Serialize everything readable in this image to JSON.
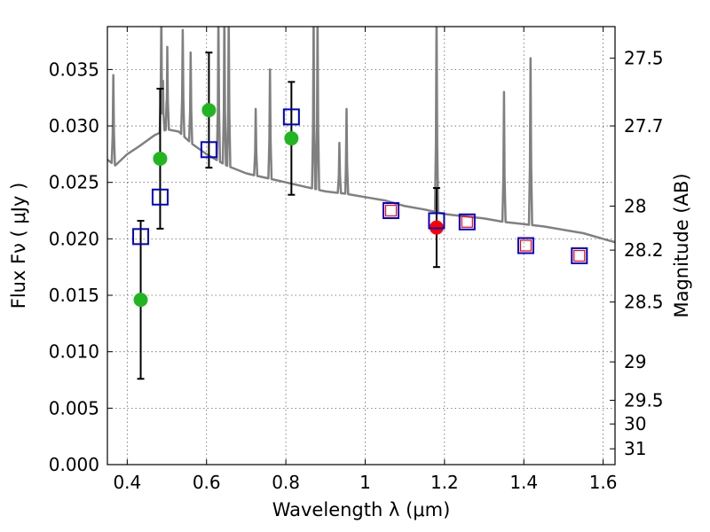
{
  "chart_data": {
    "type": "scatter",
    "title": "",
    "xlabel": "Wavelength  λ (μm)",
    "ylabel": "Flux  Fν  ( μJy )",
    "y2label": "Magnitude (AB)",
    "xlim": [
      0.35,
      1.63
    ],
    "ylim": [
      0.0,
      0.0388
    ],
    "xticks": [
      0.4,
      0.6,
      0.8,
      1.0,
      1.2,
      1.4,
      1.6
    ],
    "xtick_labels": [
      "0.4",
      "0.6",
      "0.8",
      "1",
      "1.2",
      "1.4",
      "1.6"
    ],
    "yticks": [
      0.0,
      0.005,
      0.01,
      0.015,
      0.02,
      0.025,
      0.03,
      0.035
    ],
    "ytick_labels": [
      "0.000",
      "0.005",
      "0.010",
      "0.015",
      "0.020",
      "0.025",
      "0.030",
      "0.035"
    ],
    "y2ticks": [
      {
        "flux": 0.036,
        "label": "27.5"
      },
      {
        "flux": 0.03,
        "label": "27.7"
      },
      {
        "flux": 0.0229,
        "label": "28"
      },
      {
        "flux": 0.019,
        "label": "28.2"
      },
      {
        "flux": 0.0144,
        "label": "28.5"
      },
      {
        "flux": 0.0091,
        "label": "29"
      },
      {
        "flux": 0.0057,
        "label": "29.5"
      },
      {
        "flux": 0.0036,
        "label": "30"
      },
      {
        "flux": 0.0014,
        "label": "31"
      }
    ],
    "grid": true,
    "series": [
      {
        "name": "model spectrum",
        "style": "line",
        "color": "#808080",
        "continuum": [
          [
            0.35,
            0.027
          ],
          [
            0.37,
            0.0265
          ],
          [
            0.4,
            0.0275
          ],
          [
            0.43,
            0.0282
          ],
          [
            0.47,
            0.0292
          ],
          [
            0.5,
            0.0297
          ],
          [
            0.53,
            0.0295
          ],
          [
            0.56,
            0.0285
          ],
          [
            0.6,
            0.0275
          ],
          [
            0.65,
            0.0265
          ],
          [
            0.7,
            0.0258
          ],
          [
            0.75,
            0.0254
          ],
          [
            0.8,
            0.025
          ],
          [
            0.85,
            0.0246
          ],
          [
            0.9,
            0.0242
          ],
          [
            0.95,
            0.024
          ],
          [
            1.0,
            0.0237
          ],
          [
            1.05,
            0.0234
          ],
          [
            1.1,
            0.0229
          ],
          [
            1.15,
            0.0226
          ],
          [
            1.2,
            0.0222
          ],
          [
            1.25,
            0.022
          ],
          [
            1.3,
            0.0218
          ],
          [
            1.35,
            0.0215
          ],
          [
            1.4,
            0.0213
          ],
          [
            1.45,
            0.0211
          ],
          [
            1.5,
            0.0208
          ],
          [
            1.55,
            0.0205
          ],
          [
            1.6,
            0.02
          ],
          [
            1.63,
            0.0197
          ]
        ],
        "emission_lines": [
          {
            "x": 0.365,
            "peak": 0.0345
          },
          {
            "x": 0.486,
            "peak": 0.04
          },
          {
            "x": 0.49,
            "peak": 0.034
          },
          {
            "x": 0.501,
            "peak": 0.037
          },
          {
            "x": 0.54,
            "peak": 0.0385
          },
          {
            "x": 0.56,
            "peak": 0.0365
          },
          {
            "x": 0.63,
            "peak": 0.04
          },
          {
            "x": 0.645,
            "peak": 0.04
          },
          {
            "x": 0.656,
            "peak": 0.04
          },
          {
            "x": 0.724,
            "peak": 0.0315
          },
          {
            "x": 0.76,
            "peak": 0.035
          },
          {
            "x": 0.87,
            "peak": 0.04
          },
          {
            "x": 0.88,
            "peak": 0.04
          },
          {
            "x": 0.935,
            "peak": 0.0285
          },
          {
            "x": 0.953,
            "peak": 0.0315
          },
          {
            "x": 1.18,
            "peak": 0.04
          },
          {
            "x": 1.35,
            "peak": 0.033
          },
          {
            "x": 1.417,
            "peak": 0.036
          }
        ]
      },
      {
        "name": "observed (green)",
        "style": "marker-circle",
        "color": "#22b522",
        "points": [
          {
            "x": 0.434,
            "y": 0.0146,
            "err": 0.007
          },
          {
            "x": 0.483,
            "y": 0.0271,
            "err": 0.0062
          },
          {
            "x": 0.606,
            "y": 0.0314,
            "err": 0.0051
          },
          {
            "x": 0.814,
            "y": 0.0289,
            "err": 0.005
          }
        ]
      },
      {
        "name": "observed (red)",
        "style": "marker-circle",
        "color": "#ff0000",
        "points": [
          {
            "x": 1.18,
            "y": 0.021,
            "err": 0.0035
          }
        ]
      },
      {
        "name": "model photometry (blue)",
        "style": "marker-square",
        "color": "#0000cc",
        "points": [
          {
            "x": 0.434,
            "y": 0.0202
          },
          {
            "x": 0.483,
            "y": 0.0237
          },
          {
            "x": 0.606,
            "y": 0.0279
          },
          {
            "x": 0.814,
            "y": 0.0308
          },
          {
            "x": 1.065,
            "y": 0.0225
          },
          {
            "x": 1.18,
            "y": 0.0216
          },
          {
            "x": 1.257,
            "y": 0.0215
          },
          {
            "x": 1.405,
            "y": 0.0194
          },
          {
            "x": 1.54,
            "y": 0.0185
          }
        ]
      },
      {
        "name": "model photometry (red inner)",
        "style": "marker-square-small",
        "color": "#ff0000",
        "points": [
          {
            "x": 1.065,
            "y": 0.0225
          },
          {
            "x": 1.257,
            "y": 0.0215
          },
          {
            "x": 1.405,
            "y": 0.0194
          },
          {
            "x": 1.54,
            "y": 0.0185
          }
        ]
      }
    ]
  }
}
